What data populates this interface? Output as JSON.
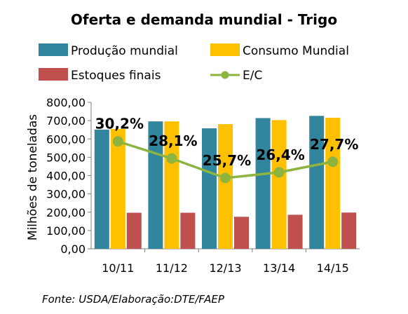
{
  "chart_data": {
    "type": "bar",
    "title": "Oferta e demanda mundial - Trigo",
    "ylabel": "Milhões de toneladas",
    "xlabel": "",
    "ylim": [
      0,
      800
    ],
    "yticks": [
      "0,00",
      "100,00",
      "200,00",
      "300,00",
      "400,00",
      "500,00",
      "600,00",
      "700,00",
      "800,00"
    ],
    "categories": [
      "10/11",
      "11/12",
      "12/13",
      "13/14",
      "14/15"
    ],
    "series": [
      {
        "name": "Produção mundial",
        "type": "bar",
        "color": "#31859C",
        "values": [
          651,
          696,
          658,
          714,
          726
        ]
      },
      {
        "name": "Consumo Mundial",
        "type": "bar",
        "color": "#FFC000",
        "values": [
          655,
          696,
          681,
          703,
          716
        ]
      },
      {
        "name": "Estoques finais",
        "type": "bar",
        "color": "#C0504D",
        "values": [
          197,
          197,
          175,
          186,
          198
        ]
      },
      {
        "name": "E/C",
        "type": "line",
        "color": "#8DB43F",
        "values": [
          30.2,
          28.1,
          25.7,
          26.4,
          27.7
        ],
        "labels": [
          "30,2%",
          "28,1%",
          "25,7%",
          "26,4%",
          "27,7%"
        ]
      }
    ],
    "legend_position": "top",
    "grid": false,
    "source_note": "Fonte: USDA/Elaboração:DTE/FAEP"
  }
}
